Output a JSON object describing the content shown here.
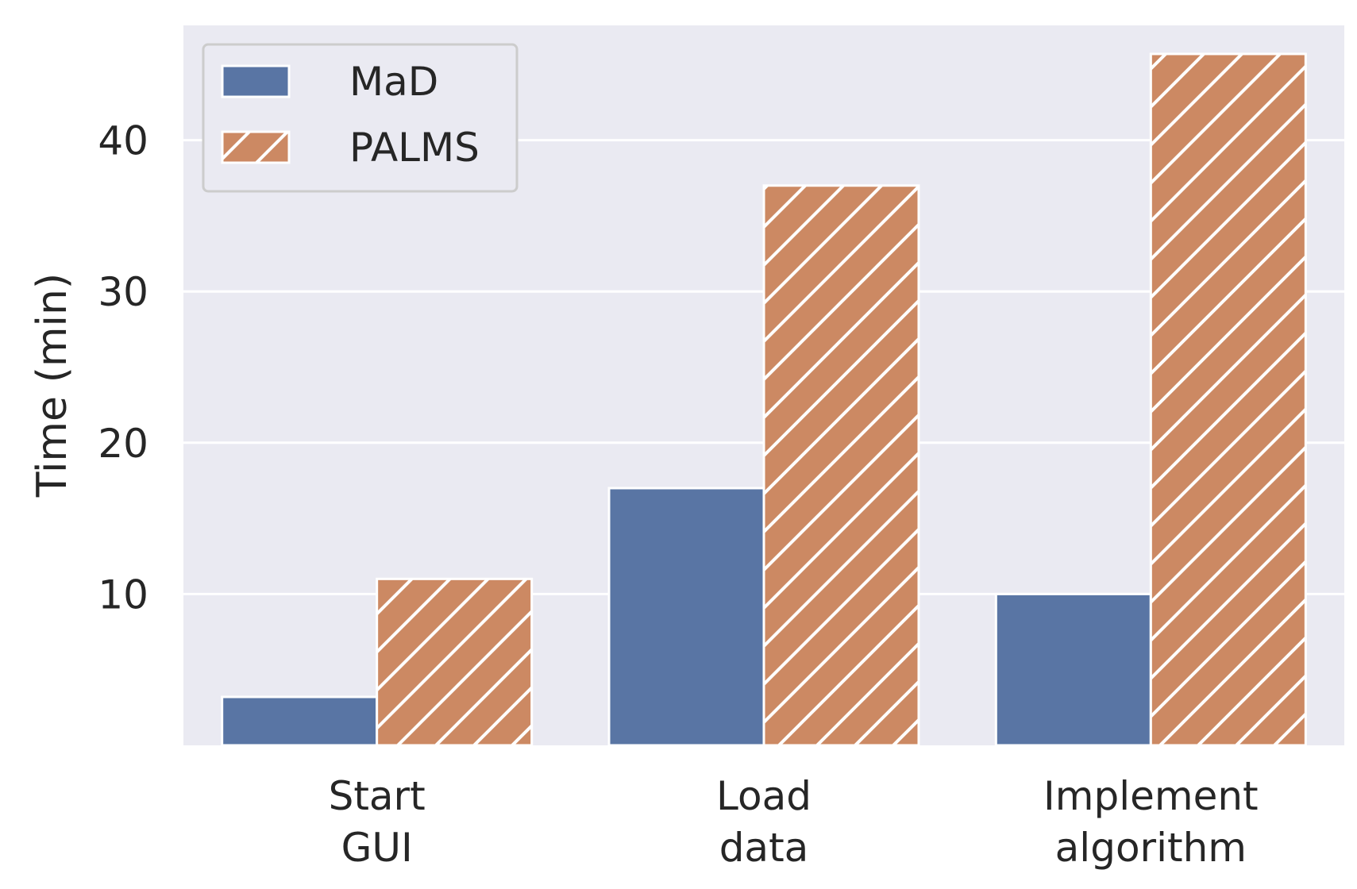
{
  "chart_data": {
    "type": "bar",
    "categories": [
      [
        "Start",
        "GUI"
      ],
      [
        "Load",
        "data"
      ],
      [
        "Implement",
        "algorithm"
      ]
    ],
    "series": [
      {
        "name": "MaD",
        "values": [
          3.2,
          17.0,
          10.0
        ],
        "color": "#5975a4",
        "hatch": false
      },
      {
        "name": "PALMS",
        "values": [
          11.0,
          37.0,
          45.7
        ],
        "color": "#cc8963",
        "hatch": true
      }
    ],
    "title": "",
    "xlabel": "",
    "ylabel": "Time (min)",
    "ylim": [
      0,
      48
    ],
    "yticks": [
      10,
      20,
      30,
      40
    ],
    "grid": true,
    "legend_position": "top-left",
    "background_color": "#eaeaf2",
    "grid_color": "#ffffff"
  }
}
